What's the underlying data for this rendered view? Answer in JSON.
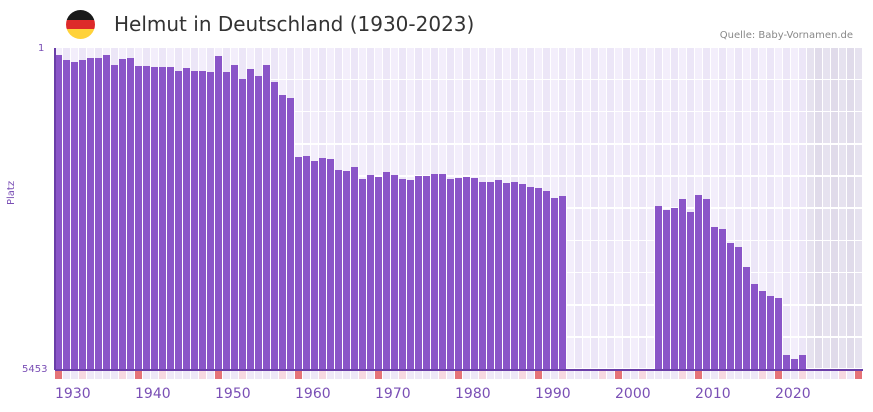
{
  "header": {
    "title": "Helmut in Deutschland (1930-2023)",
    "source": "Quelle: Baby-Vornamen.de",
    "flag_icon": "germany-flag-icon",
    "flag_colors": [
      "#1a1a1a",
      "#dd2a2a",
      "#ffd23a"
    ]
  },
  "colors": {
    "bar": "#8a55c8",
    "axis": "#6a3ea8",
    "grid_a": "#f3eefb",
    "grid_b": "#ece6f7",
    "future_a": "#e6e2ef",
    "future_b": "#e0dbea",
    "decade_marker": "#e57377",
    "half_decade_marker": "#f6d8e0",
    "year_marker": "#eee8f7",
    "label": "#7a4fb5"
  },
  "chart_data": {
    "type": "bar",
    "title": "Helmut in Deutschland (1930-2023)",
    "xlabel": "",
    "ylabel": "Platz",
    "y_inverted": true,
    "ylim": [
      1,
      5453
    ],
    "y_tick_labels": [
      "1",
      "5453"
    ],
    "x_range": [
      1930,
      2030
    ],
    "x_tick_labels": [
      "1930",
      "1940",
      "1950",
      "1960",
      "1970",
      "1980",
      "1990",
      "2000",
      "2010",
      "2020"
    ],
    "projection_start": 2024,
    "grid": true,
    "legend": null,
    "x": [
      1930,
      1931,
      1932,
      1933,
      1934,
      1935,
      1936,
      1937,
      1938,
      1939,
      1940,
      1941,
      1942,
      1943,
      1944,
      1945,
      1946,
      1947,
      1948,
      1949,
      1950,
      1951,
      1952,
      1953,
      1954,
      1955,
      1956,
      1957,
      1958,
      1959,
      1960,
      1961,
      1962,
      1963,
      1964,
      1965,
      1966,
      1967,
      1968,
      1969,
      1970,
      1971,
      1972,
      1973,
      1974,
      1975,
      1976,
      1977,
      1978,
      1979,
      1980,
      1981,
      1982,
      1983,
      1984,
      1985,
      1986,
      1987,
      1988,
      1989,
      1990,
      1991,
      1992,
      1993,
      2005,
      2006,
      2007,
      2008,
      2009,
      2010,
      2011,
      2012,
      2013,
      2014,
      2015,
      2016,
      2017,
      2018,
      2019,
      2020,
      2021,
      2022,
      2023
    ],
    "values": [
      119,
      204,
      238,
      204,
      170,
      170,
      119,
      289,
      187,
      170,
      306,
      306,
      323,
      323,
      323,
      390,
      340,
      390,
      390,
      407,
      136,
      407,
      289,
      526,
      357,
      475,
      289,
      577,
      797,
      848,
      1846,
      1829,
      1914,
      1863,
      1880,
      2066,
      2083,
      2016,
      2219,
      2151,
      2185,
      2100,
      2151,
      2219,
      2236,
      2168,
      2168,
      2134,
      2134,
      2219,
      2202,
      2185,
      2202,
      2270,
      2270,
      2236,
      2287,
      2270,
      2304,
      2354,
      2371,
      2422,
      2541,
      2507,
      2676,
      2744,
      2710,
      2558,
      2778,
      2490,
      2558,
      3032,
      3066,
      3303,
      3370,
      3709,
      3997,
      4115,
      4200,
      4234,
      5199,
      5267,
      5199
    ]
  }
}
